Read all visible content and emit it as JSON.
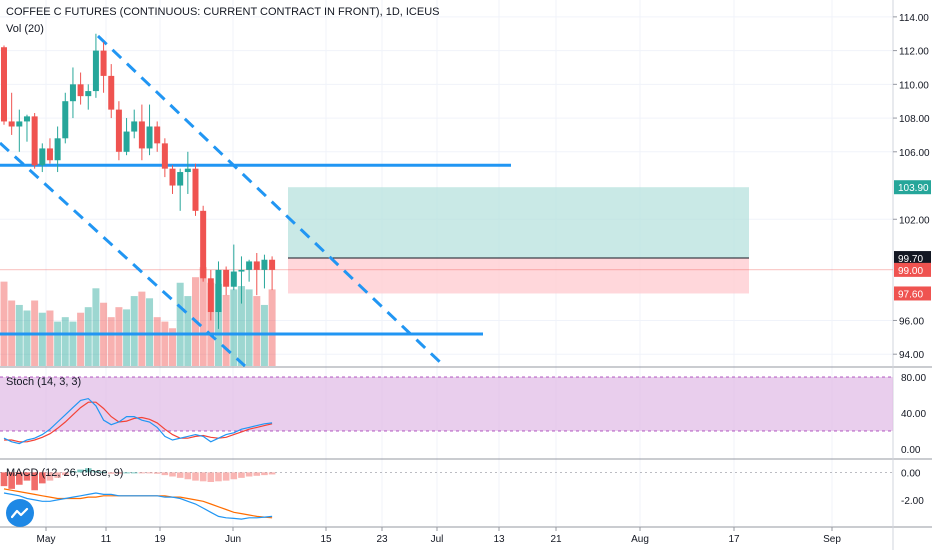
{
  "header": {
    "title": "COFFEE C FUTURES (CONTINUOUS: CURRENT CONTRACT IN FRONT), 1D, ICEUS",
    "volume_label": "Vol (20)"
  },
  "stoch_label": "Stoch (14, 3, 3)",
  "macd_label": "MACD (12, 26, close, 9)",
  "price_axis": {
    "ticks": [
      "114.00",
      "112.00",
      "110.00",
      "108.00",
      "106.00",
      "102.00",
      "96.00",
      "94.00"
    ],
    "badges": {
      "target": "103.90",
      "entry": "99.70",
      "last": "99.00",
      "stop": "97.60"
    }
  },
  "stoch_axis": {
    "ticks": [
      "80.00",
      "40.00",
      "0.00"
    ]
  },
  "macd_axis": {
    "ticks": [
      "0.00",
      "-2.00"
    ]
  },
  "time_axis": {
    "ticks": [
      "May",
      "11",
      "19",
      "Jun",
      "15",
      "23",
      "Jul",
      "13",
      "21",
      "Aug",
      "17",
      "Sep"
    ]
  },
  "colors": {
    "up": "#26a69a",
    "down": "#ef5350",
    "trendline": "#2196f3",
    "stoch_k": "#2196f3",
    "stoch_d": "#f44336",
    "stoch_band": "#e1bee7",
    "target_zone": "#b2dfdb",
    "stop_zone": "#ffcdd2"
  },
  "chart_data": {
    "type": "candlestick",
    "price_ylim": [
      93.3,
      115
    ],
    "candles": [
      {
        "o": 112.2,
        "h": 112.3,
        "l": 107.6,
        "c": 107.8
      },
      {
        "o": 107.8,
        "h": 109.5,
        "l": 107.0,
        "c": 107.5
      },
      {
        "o": 107.5,
        "h": 108.5,
        "l": 106.0,
        "c": 107.8
      },
      {
        "o": 107.8,
        "h": 108.2,
        "l": 106.6,
        "c": 108.1
      },
      {
        "o": 108.1,
        "h": 108.3,
        "l": 105.0,
        "c": 105.2
      },
      {
        "o": 105.2,
        "h": 106.5,
        "l": 104.8,
        "c": 106.2
      },
      {
        "o": 106.2,
        "h": 106.8,
        "l": 105.3,
        "c": 105.5
      },
      {
        "o": 105.5,
        "h": 107.5,
        "l": 104.8,
        "c": 106.8
      },
      {
        "o": 106.8,
        "h": 109.5,
        "l": 106.5,
        "c": 109.0
      },
      {
        "o": 109.0,
        "h": 111.0,
        "l": 108.0,
        "c": 110.0
      },
      {
        "o": 110.0,
        "h": 110.7,
        "l": 108.8,
        "c": 109.3
      },
      {
        "o": 109.3,
        "h": 110.0,
        "l": 108.5,
        "c": 109.6
      },
      {
        "o": 109.6,
        "h": 113.0,
        "l": 109.2,
        "c": 112.0
      },
      {
        "o": 112.0,
        "h": 112.5,
        "l": 109.5,
        "c": 110.5
      },
      {
        "o": 110.5,
        "h": 111.2,
        "l": 108.0,
        "c": 108.5
      },
      {
        "o": 108.5,
        "h": 109.0,
        "l": 105.5,
        "c": 106.0
      },
      {
        "o": 106.0,
        "h": 108.0,
        "l": 105.8,
        "c": 107.2
      },
      {
        "o": 107.2,
        "h": 108.5,
        "l": 106.8,
        "c": 107.8
      },
      {
        "o": 107.8,
        "h": 108.8,
        "l": 105.5,
        "c": 106.2
      },
      {
        "o": 106.2,
        "h": 108.8,
        "l": 105.8,
        "c": 107.5
      },
      {
        "o": 107.5,
        "h": 107.8,
        "l": 106.0,
        "c": 106.5
      },
      {
        "o": 106.5,
        "h": 106.8,
        "l": 104.5,
        "c": 105.0
      },
      {
        "o": 105.0,
        "h": 105.2,
        "l": 103.5,
        "c": 104.0
      },
      {
        "o": 104.0,
        "h": 105.0,
        "l": 102.5,
        "c": 104.8
      },
      {
        "o": 104.8,
        "h": 106.0,
        "l": 103.5,
        "c": 105.0
      },
      {
        "o": 105.0,
        "h": 105.3,
        "l": 102.2,
        "c": 102.5
      },
      {
        "o": 102.5,
        "h": 102.8,
        "l": 98.3,
        "c": 98.5
      },
      {
        "o": 98.5,
        "h": 99.0,
        "l": 96.0,
        "c": 96.5
      },
      {
        "o": 96.5,
        "h": 99.5,
        "l": 95.5,
        "c": 99.0
      },
      {
        "o": 99.0,
        "h": 99.2,
        "l": 97.5,
        "c": 98.0
      },
      {
        "o": 98.0,
        "h": 100.5,
        "l": 97.8,
        "c": 98.9
      },
      {
        "o": 98.9,
        "h": 99.8,
        "l": 97.0,
        "c": 99.0
      },
      {
        "o": 99.0,
        "h": 99.6,
        "l": 98.3,
        "c": 99.5
      },
      {
        "o": 99.5,
        "h": 100.0,
        "l": 97.5,
        "c": 99.0
      },
      {
        "o": 99.0,
        "h": 99.9,
        "l": 97.9,
        "c": 99.6
      },
      {
        "o": 99.6,
        "h": 99.8,
        "l": 97.8,
        "c": 99.0
      }
    ],
    "volume_ratio": [
      0.76,
      0.59,
      0.55,
      0.5,
      0.59,
      0.48,
      0.5,
      0.4,
      0.44,
      0.4,
      0.48,
      0.53,
      0.7,
      0.57,
      0.44,
      0.53,
      0.51,
      0.63,
      0.67,
      0.61,
      0.44,
      0.4,
      0.34,
      0.75,
      0.63,
      0.8,
      0.89,
      0.75,
      0.74,
      0.64,
      0.69,
      0.72,
      0.69,
      0.63,
      0.55,
      0.69
    ],
    "horizontal_lines": [
      105.2,
      95.2
    ],
    "position": {
      "target": 103.9,
      "entry": 99.7,
      "last": 99.0,
      "stop": 97.6
    },
    "stoch_ylim": [
      -10,
      90
    ],
    "stoch_band": [
      20,
      80
    ],
    "stoch_k": [
      12,
      8,
      6,
      10,
      12,
      16,
      22,
      30,
      38,
      46,
      54,
      56,
      48,
      32,
      27,
      30,
      36,
      36,
      32,
      30,
      24,
      14,
      10,
      12,
      14,
      16,
      14,
      8,
      12,
      16,
      18,
      22,
      24,
      26,
      28,
      29
    ],
    "stoch_d": [
      10,
      10,
      8,
      8,
      10,
      13,
      17,
      23,
      30,
      38,
      46,
      52,
      52,
      45,
      36,
      30,
      31,
      34,
      35,
      33,
      29,
      22,
      16,
      12,
      12,
      14,
      15,
      13,
      12,
      13,
      16,
      19,
      22,
      24,
      26,
      28
    ],
    "macd_ylim": [
      -3.9,
      0.9
    ],
    "macd_line": [
      -1.5,
      -1.6,
      -1.7,
      -1.9,
      -2.0,
      -2.1,
      -2.1,
      -2.0,
      -1.9,
      -1.8,
      -1.7,
      -1.6,
      -1.5,
      -1.6,
      -1.6,
      -1.7,
      -1.7,
      -1.7,
      -1.7,
      -1.7,
      -1.7,
      -1.8,
      -1.8,
      -1.9,
      -2.1,
      -2.3,
      -2.6,
      -2.9,
      -3.2,
      -3.3,
      -3.35,
      -3.4,
      -3.3,
      -3.3,
      -3.25,
      -3.2
    ],
    "signal_line": [
      -1.2,
      -1.3,
      -1.4,
      -1.5,
      -1.6,
      -1.7,
      -1.8,
      -1.9,
      -1.9,
      -1.9,
      -1.9,
      -1.8,
      -1.8,
      -1.7,
      -1.7,
      -1.7,
      -1.7,
      -1.7,
      -1.7,
      -1.7,
      -1.7,
      -1.7,
      -1.8,
      -1.8,
      -1.9,
      -2.0,
      -2.1,
      -2.3,
      -2.5,
      -2.7,
      -2.9,
      -3.0,
      -3.1,
      -3.2,
      -3.25,
      -3.3
    ],
    "macd_hist": [
      -1.0,
      -1.2,
      -0.9,
      -0.6,
      -1.3,
      -0.8,
      -0.6,
      -0.4,
      -0.2,
      0.1,
      0.2,
      0.3,
      0.1,
      0.05,
      -0.1,
      -0.1,
      0,
      0,
      -0.05,
      -0.05,
      -0.1,
      -0.2,
      -0.3,
      -0.4,
      -0.5,
      -0.6,
      -0.65,
      -0.7,
      -0.65,
      -0.6,
      -0.5,
      -0.4,
      -0.3,
      -0.25,
      -0.2,
      -0.15
    ]
  }
}
